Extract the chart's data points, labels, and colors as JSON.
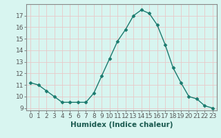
{
  "x": [
    0,
    1,
    2,
    3,
    4,
    5,
    6,
    7,
    8,
    9,
    10,
    11,
    12,
    13,
    14,
    15,
    16,
    17,
    18,
    19,
    20,
    21,
    22,
    23
  ],
  "y": [
    11.2,
    11.0,
    10.5,
    10.0,
    9.5,
    9.5,
    9.5,
    9.5,
    10.3,
    11.8,
    13.3,
    14.8,
    15.8,
    17.0,
    17.5,
    17.2,
    16.2,
    14.5,
    12.5,
    11.2,
    10.0,
    9.8,
    9.2,
    9.0
  ],
  "xlabel": "Humidex (Indice chaleur)",
  "ylim": [
    8.8,
    18.0
  ],
  "xlim": [
    -0.5,
    23.5
  ],
  "yticks": [
    9,
    10,
    11,
    12,
    13,
    14,
    15,
    16,
    17
  ],
  "xtick_labels": [
    "0",
    "1",
    "2",
    "3",
    "4",
    "5",
    "6",
    "7",
    "8",
    "9",
    "10",
    "11",
    "12",
    "13",
    "14",
    "15",
    "16",
    "17",
    "18",
    "19",
    "20",
    "21",
    "22",
    "23"
  ],
  "line_color": "#1a7a6e",
  "marker": "D",
  "marker_size": 2.5,
  "bg_color": "#d8f5f0",
  "grid_color": "#e8c8c8",
  "spine_color": "#888888",
  "tick_fontsize": 6.5,
  "xlabel_fontsize": 7.5,
  "xlabel_fontweight": "bold"
}
